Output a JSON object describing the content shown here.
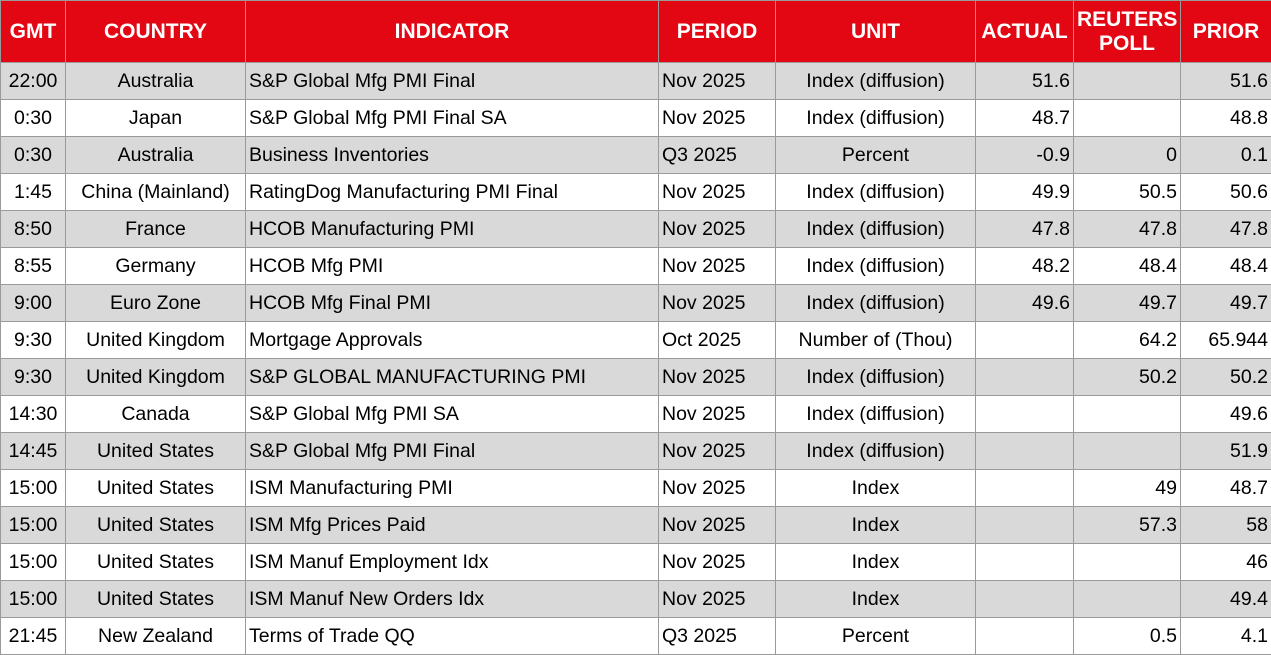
{
  "table": {
    "header": [
      "GMT",
      "COUNTRY",
      "INDICATOR",
      "PERIOD",
      "UNIT",
      "ACTUAL",
      "REUTERS POLL",
      "PRIOR"
    ],
    "rows": [
      [
        "22:00",
        "Australia",
        "S&P Global Mfg PMI Final",
        "Nov 2025",
        "Index (diffusion)",
        51.6,
        null,
        51.6
      ],
      [
        "0:30",
        "Japan",
        "S&P Global Mfg PMI Final SA",
        "Nov 2025",
        "Index (diffusion)",
        48.7,
        null,
        48.8
      ],
      [
        "0:30",
        "Australia",
        "Business Inventories",
        "Q3 2025",
        "Percent",
        -0.9,
        0,
        0.1
      ],
      [
        "1:45",
        "China (Mainland)",
        "RatingDog Manufacturing PMI Final",
        "Nov 2025",
        "Index (diffusion)",
        49.9,
        50.5,
        50.6
      ],
      [
        "8:50",
        "France",
        "HCOB Manufacturing PMI",
        "Nov 2025",
        "Index (diffusion)",
        47.8,
        47.8,
        47.8
      ],
      [
        "8:55",
        "Germany",
        "HCOB Mfg PMI",
        "Nov 2025",
        "Index (diffusion)",
        48.2,
        48.4,
        48.4
      ],
      [
        "9:00",
        "Euro Zone",
        "HCOB Mfg Final PMI",
        "Nov 2025",
        "Index (diffusion)",
        49.6,
        49.7,
        49.7
      ],
      [
        "9:30",
        "United Kingdom",
        "Mortgage Approvals",
        "Oct 2025",
        "Number of (Thou)",
        null,
        64.2,
        65.944
      ],
      [
        "9:30",
        "United Kingdom",
        "S&P GLOBAL MANUFACTURING PMI",
        "Nov 2025",
        "Index (diffusion)",
        null,
        50.2,
        50.2
      ],
      [
        "14:30",
        "Canada",
        "S&P Global Mfg PMI SA",
        "Nov 2025",
        "Index (diffusion)",
        null,
        null,
        49.6
      ],
      [
        "14:45",
        "United States",
        "S&P Global Mfg PMI Final",
        "Nov 2025",
        "Index (diffusion)",
        null,
        null,
        51.9
      ],
      [
        "15:00",
        "United States",
        "ISM Manufacturing PMI",
        "Nov 2025",
        "Index",
        null,
        49,
        48.7
      ],
      [
        "15:00",
        "United States",
        "ISM Mfg Prices Paid",
        "Nov 2025",
        "Index",
        null,
        57.3,
        58
      ],
      [
        "15:00",
        "United States",
        "ISM Manuf Employment Idx",
        "Nov 2025",
        "Index",
        null,
        null,
        46
      ],
      [
        "15:00",
        "United States",
        "ISM Manuf New Orders Idx",
        "Nov 2025",
        "Index",
        null,
        null,
        49.4
      ],
      [
        "21:45",
        "New Zealand",
        "Terms of Trade QQ",
        "Q3 2025",
        "Percent",
        null,
        0.5,
        4.1
      ]
    ]
  }
}
